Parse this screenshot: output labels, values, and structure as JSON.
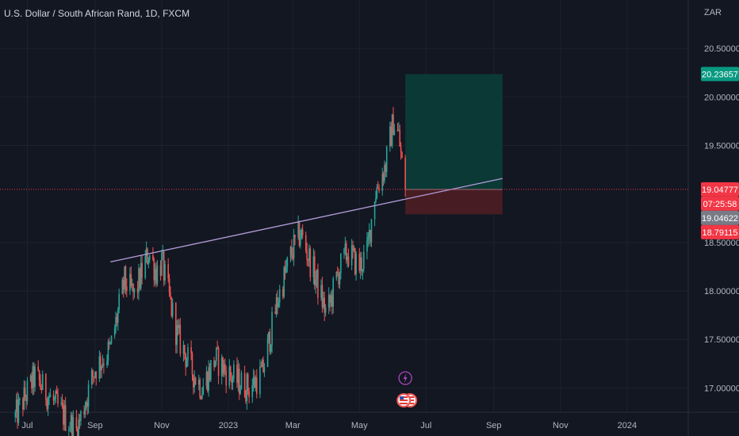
{
  "chart_data": {
    "type": "candlestick",
    "title": "U.S. Dollar / South African Rand, 1D, FXCM",
    "ylabel": "ZAR",
    "ylim": [
      16.75,
      21.0
    ],
    "xlim": [
      "2022-06-06",
      "2024-02-26"
    ],
    "y_ticks": [
      "17.00000",
      "17.50000",
      "18.00000",
      "18.50000",
      "19.50000",
      "20.00000",
      "20.50000"
    ],
    "x_ticks": [
      {
        "label": "Jul",
        "date": "2022-07-01"
      },
      {
        "label": "Sep",
        "date": "2022-09-01"
      },
      {
        "label": "Nov",
        "date": "2022-11-01"
      },
      {
        "label": "2023",
        "date": "2023-01-01"
      },
      {
        "label": "Mar",
        "date": "2023-03-01"
      },
      {
        "label": "May",
        "date": "2023-05-01"
      },
      {
        "label": "Jul",
        "date": "2023-07-01"
      },
      {
        "label": "Sep",
        "date": "2023-09-01"
      },
      {
        "label": "Nov",
        "date": "2023-11-01"
      },
      {
        "label": "2024",
        "date": "2024-01-01"
      }
    ],
    "grid": true,
    "colors": {
      "up": "#26a69a",
      "down": "#ef5350",
      "background": "#131722",
      "grid": "#1e222d",
      "trendline": "#b39ddb"
    },
    "closes_keypoints": [
      {
        "date": "2022-06-20",
        "value": 16.7
      },
      {
        "date": "2022-07-08",
        "value": 17.12
      },
      {
        "date": "2022-07-15",
        "value": 17.0
      },
      {
        "date": "2022-08-01",
        "value": 16.75
      },
      {
        "date": "2022-08-15",
        "value": 16.55
      },
      {
        "date": "2022-09-01",
        "value": 17.2
      },
      {
        "date": "2022-09-15",
        "value": 17.4
      },
      {
        "date": "2022-09-28",
        "value": 18.1
      },
      {
        "date": "2022-10-07",
        "value": 17.95
      },
      {
        "date": "2022-10-20",
        "value": 18.4
      },
      {
        "date": "2022-10-27",
        "value": 18.2
      },
      {
        "date": "2022-11-01",
        "value": 18.3
      },
      {
        "date": "2022-11-15",
        "value": 17.55
      },
      {
        "date": "2022-11-30",
        "value": 17.15
      },
      {
        "date": "2022-12-08",
        "value": 17.0
      },
      {
        "date": "2022-12-20",
        "value": 17.3
      },
      {
        "date": "2023-01-05",
        "value": 17.1
      },
      {
        "date": "2023-01-20",
        "value": 17.0
      },
      {
        "date": "2023-02-01",
        "value": 17.15
      },
      {
        "date": "2023-02-15",
        "value": 17.9
      },
      {
        "date": "2023-02-28",
        "value": 18.4
      },
      {
        "date": "2023-03-08",
        "value": 18.6
      },
      {
        "date": "2023-03-20",
        "value": 18.2
      },
      {
        "date": "2023-04-01",
        "value": 17.75
      },
      {
        "date": "2023-04-12",
        "value": 18.2
      },
      {
        "date": "2023-04-20",
        "value": 18.4
      },
      {
        "date": "2023-05-01",
        "value": 18.25
      },
      {
        "date": "2023-05-08",
        "value": 18.4
      },
      {
        "date": "2023-05-15",
        "value": 19.0
      },
      {
        "date": "2023-05-25",
        "value": 19.3
      },
      {
        "date": "2023-06-01",
        "value": 19.75
      },
      {
        "date": "2023-06-06",
        "value": 19.6
      },
      {
        "date": "2023-06-09",
        "value": 19.3
      },
      {
        "date": "2023-06-12",
        "value": 19.04622
      }
    ],
    "trendline": {
      "start": {
        "date": "2022-09-15",
        "value": 18.3
      },
      "end": {
        "date": "2023-09-09",
        "value": 19.16
      }
    },
    "position": {
      "type": "long",
      "start_date": "2023-06-12",
      "end_date": "2023-09-09",
      "entry": 19.04622,
      "target": 20.23657,
      "stop": 18.79115,
      "profit_color": "#0b3b37",
      "loss_color": "#4a1d24"
    },
    "current_price": 19.04777,
    "price_labels": [
      {
        "value": 20.23657,
        "text": "20.23657",
        "color": "#089981"
      },
      {
        "value": 19.04777,
        "text": "19.04777",
        "color": "#f23645"
      },
      {
        "value": 19.04622,
        "text": "19.04622",
        "color": "#787b86"
      },
      {
        "value": 18.79115,
        "text": "18.79115",
        "color": "#f23645"
      }
    ],
    "countdown": "07:25:58",
    "events": [
      {
        "date": "2023-06-12",
        "icon": "lightning-icon",
        "color": "#ab47bc"
      },
      {
        "date": "2023-06-12",
        "icon": "us-flag-icon",
        "color": "#ef5350"
      }
    ]
  }
}
